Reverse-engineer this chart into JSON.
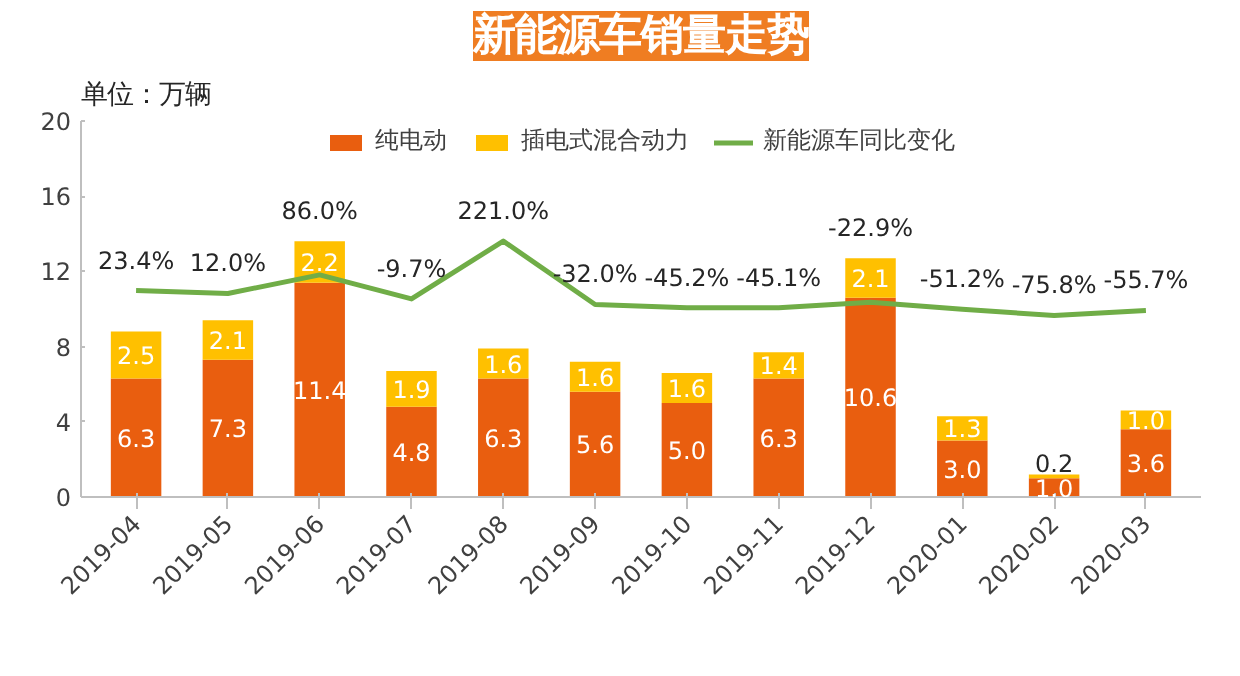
{
  "chart_data": {
    "type": "bar",
    "title": "新能源车销量走势",
    "ylabel": "单位：万辆",
    "stacked": true,
    "categories": [
      "2019-04",
      "2019-05",
      "2019-06",
      "2019-07",
      "2019-08",
      "2019-09",
      "2019-10",
      "2019-11",
      "2019-12",
      "2020-01",
      "2020-02",
      "2020-03"
    ],
    "series": [
      {
        "name": "纯电动",
        "color": "#e95e0f",
        "values": [
          6.3,
          7.3,
          11.4,
          4.8,
          6.3,
          5.6,
          5.0,
          6.3,
          10.6,
          3.0,
          1.0,
          3.6
        ],
        "value_labels": [
          "6.3",
          "7.3",
          "11.4",
          "4.8",
          "6.3",
          "5.6",
          "5.0",
          "6.3",
          "10.6",
          "3.0",
          "1.0",
          "3.6"
        ]
      },
      {
        "name": "插电式混合动力",
        "color": "#ffc000",
        "values": [
          2.5,
          2.1,
          2.2,
          1.9,
          1.6,
          1.6,
          1.6,
          1.4,
          2.1,
          1.3,
          0.2,
          1.0
        ],
        "value_labels": [
          "2.5",
          "2.1",
          "2.2",
          "1.9",
          "1.6",
          "1.6",
          "1.6",
          "1.4",
          "2.1",
          "1.3",
          "0.2",
          "1.0"
        ]
      },
      {
        "name": "新能源车同比变化",
        "type": "line",
        "axis": "y2",
        "color": "#70ad47",
        "values": [
          23.4,
          12.0,
          86.0,
          -9.7,
          221.0,
          -32.0,
          -45.2,
          -45.1,
          -22.9,
          -51.2,
          -75.8,
          -55.7
        ],
        "value_labels": [
          "23.4%",
          "12.0%",
          "86.0%",
          "-9.7%",
          "221.0%",
          "-32.0%",
          "-45.2%",
          "-45.1%",
          "-22.9%",
          "-51.2%",
          "-75.8%",
          "-55.7%"
        ]
      }
    ],
    "ylim": [
      0,
      20
    ],
    "yticks": [
      0,
      4,
      8,
      12,
      16,
      20
    ],
    "y2lim": [
      -800,
      700
    ],
    "legend": "top",
    "grid": false,
    "line_style": "solid",
    "marker": "none"
  }
}
